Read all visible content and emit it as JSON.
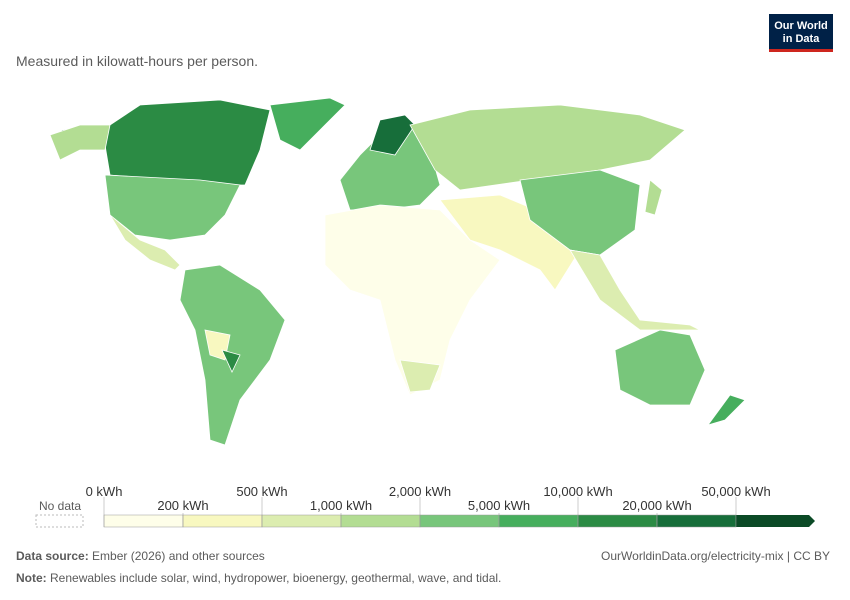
{
  "header": {
    "subtitle": "Measured in kilowatt-hours per person.",
    "logo": [
      "Our World",
      "in Data"
    ]
  },
  "legend": {
    "no_data": "No data",
    "labels": [
      "0 kWh",
      "200 kWh",
      "500 kWh",
      "1,000 kWh",
      "2,000 kWh",
      "5,000 kWh",
      "10,000 kWh",
      "20,000 kWh",
      "50,000 kWh"
    ],
    "colors": [
      "#fefee9",
      "#f8f8c0",
      "#dcedb0",
      "#b3dd93",
      "#78c67b",
      "#46ae5d",
      "#2b8b44",
      "#176e3a",
      "#0b4a26"
    ]
  },
  "footer": {
    "source_label": "Data source:",
    "source": "Ember (2026) and other sources",
    "url": "OurWorldinData.org/electricity-mix | CC BY",
    "note_label": "Note:",
    "note": "Renewables include solar, wind, hydropower, bioenergy, geothermal, wave, and tidal."
  }
}
